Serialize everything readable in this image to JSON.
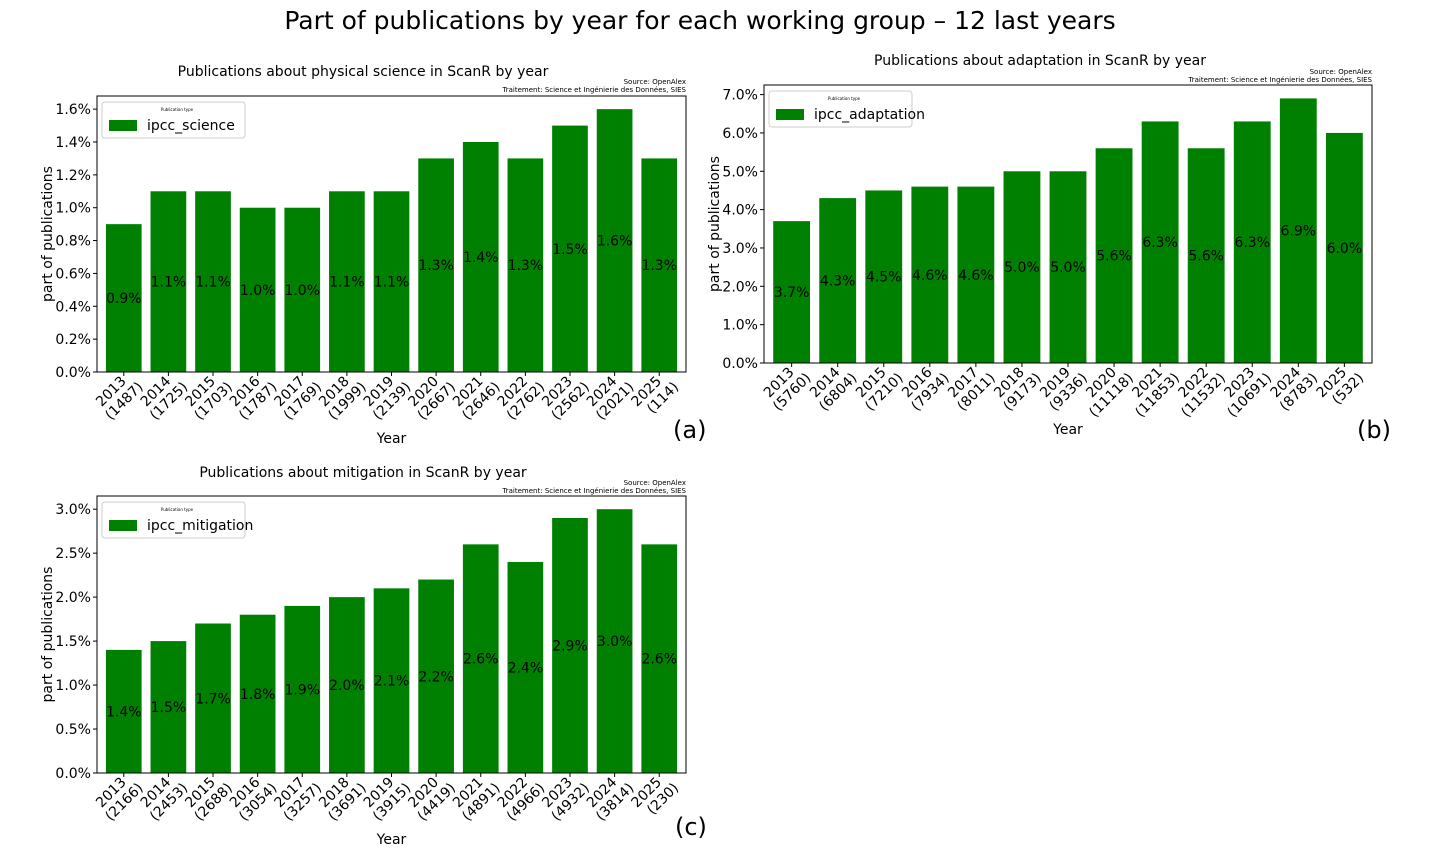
{
  "title": "Part of publications by year for each working group – 12 last years",
  "colors": {
    "bar": "#008000",
    "frame": "#000000",
    "background": "#ffffff"
  },
  "chart_data": [
    {
      "id": "a",
      "type": "bar",
      "title": "Publications about physical science in ScanR by year",
      "source": "Source: OpenAlex",
      "treatment": "Traitement: Science et Ingénierie des Données, SIES",
      "panel_label": "(a)",
      "xlabel": "Year",
      "ylabel": "part of publications",
      "legend_title": "Publication type",
      "legend_position": "top-left",
      "grid": false,
      "ylim": [
        0,
        0.0168
      ],
      "yticks": [
        0,
        0.002,
        0.004,
        0.006,
        0.008,
        0.01,
        0.012,
        0.014,
        0.016
      ],
      "ytick_labels": [
        "0.0%",
        "0.2%",
        "0.4%",
        "0.6%",
        "0.8%",
        "1.0%",
        "1.2%",
        "1.4%",
        "1.6%"
      ],
      "categories": [
        "2013\n(1487)",
        "2014\n(1725)",
        "2015\n(1703)",
        "2016\n(1787)",
        "2017\n(1769)",
        "2018\n(1999)",
        "2019\n(2139)",
        "2020\n(2667)",
        "2021\n(2646)",
        "2022\n(2762)",
        "2023\n(2562)",
        "2024\n(2021)",
        "2025\n(114)"
      ],
      "series": [
        {
          "name": "ipcc_science",
          "values": [
            0.009,
            0.011,
            0.011,
            0.01,
            0.01,
            0.011,
            0.011,
            0.013,
            0.014,
            0.013,
            0.015,
            0.016,
            0.013
          ],
          "labels": [
            "0.9%",
            "1.1%",
            "1.1%",
            "1.0%",
            "1.0%",
            "1.1%",
            "1.1%",
            "1.3%",
            "1.4%",
            "1.3%",
            "1.5%",
            "1.6%",
            "1.3%"
          ]
        }
      ]
    },
    {
      "id": "b",
      "type": "bar",
      "title": "Publications about adaptation in ScanR by year",
      "source": "Source: OpenAlex",
      "treatment": "Traitement: Science et Ingénierie des Données, SIES",
      "panel_label": "(b)",
      "xlabel": "Year",
      "ylabel": "part of publications",
      "legend_title": "Publication type",
      "legend_position": "top-left",
      "grid": false,
      "ylim": [
        0,
        0.0725
      ],
      "yticks": [
        0,
        0.01,
        0.02,
        0.03,
        0.04,
        0.05,
        0.06,
        0.07
      ],
      "ytick_labels": [
        "0.0%",
        "1.0%",
        "2.0%",
        "3.0%",
        "4.0%",
        "5.0%",
        "6.0%",
        "7.0%"
      ],
      "categories": [
        "2013\n(5760)",
        "2014\n(6804)",
        "2015\n(7210)",
        "2016\n(7934)",
        "2017\n(8011)",
        "2018\n(9173)",
        "2019\n(9336)",
        "2020\n(11118)",
        "2021\n(11853)",
        "2022\n(11532)",
        "2023\n(10691)",
        "2024\n(8783)",
        "2025\n(532)"
      ],
      "series": [
        {
          "name": "ipcc_adaptation",
          "values": [
            0.037,
            0.043,
            0.045,
            0.046,
            0.046,
            0.05,
            0.05,
            0.056,
            0.063,
            0.056,
            0.063,
            0.069,
            0.06
          ],
          "labels": [
            "3.7%",
            "4.3%",
            "4.5%",
            "4.6%",
            "4.6%",
            "5.0%",
            "5.0%",
            "5.6%",
            "6.3%",
            "5.6%",
            "6.3%",
            "6.9%",
            "6.0%"
          ]
        }
      ]
    },
    {
      "id": "c",
      "type": "bar",
      "title": "Publications about mitigation in ScanR by year",
      "source": "Source: OpenAlex",
      "treatment": "Traitement: Science et Ingénierie des Données, SIES",
      "panel_label": "(c)",
      "xlabel": "Year",
      "ylabel": "part of publications",
      "legend_title": "Publication type",
      "legend_position": "top-left",
      "grid": false,
      "ylim": [
        0,
        0.0315
      ],
      "yticks": [
        0,
        0.005,
        0.01,
        0.015,
        0.02,
        0.025,
        0.03
      ],
      "ytick_labels": [
        "0.0%",
        "0.5%",
        "1.0%",
        "1.5%",
        "2.0%",
        "2.5%",
        "3.0%"
      ],
      "categories": [
        "2013\n(2166)",
        "2014\n(2453)",
        "2015\n(2688)",
        "2016\n(3054)",
        "2017\n(3257)",
        "2018\n(3691)",
        "2019\n(3915)",
        "2020\n(4419)",
        "2021\n(4891)",
        "2022\n(4966)",
        "2023\n(4932)",
        "2024\n(3814)",
        "2025\n(230)"
      ],
      "series": [
        {
          "name": "ipcc_mitigation",
          "values": [
            0.014,
            0.015,
            0.017,
            0.018,
            0.019,
            0.02,
            0.021,
            0.022,
            0.026,
            0.024,
            0.029,
            0.03,
            0.026
          ],
          "labels": [
            "1.4%",
            "1.5%",
            "1.7%",
            "1.8%",
            "1.9%",
            "2.0%",
            "2.1%",
            "2.2%",
            "2.6%",
            "2.4%",
            "2.9%",
            "3.0%",
            "2.6%"
          ]
        }
      ]
    }
  ]
}
